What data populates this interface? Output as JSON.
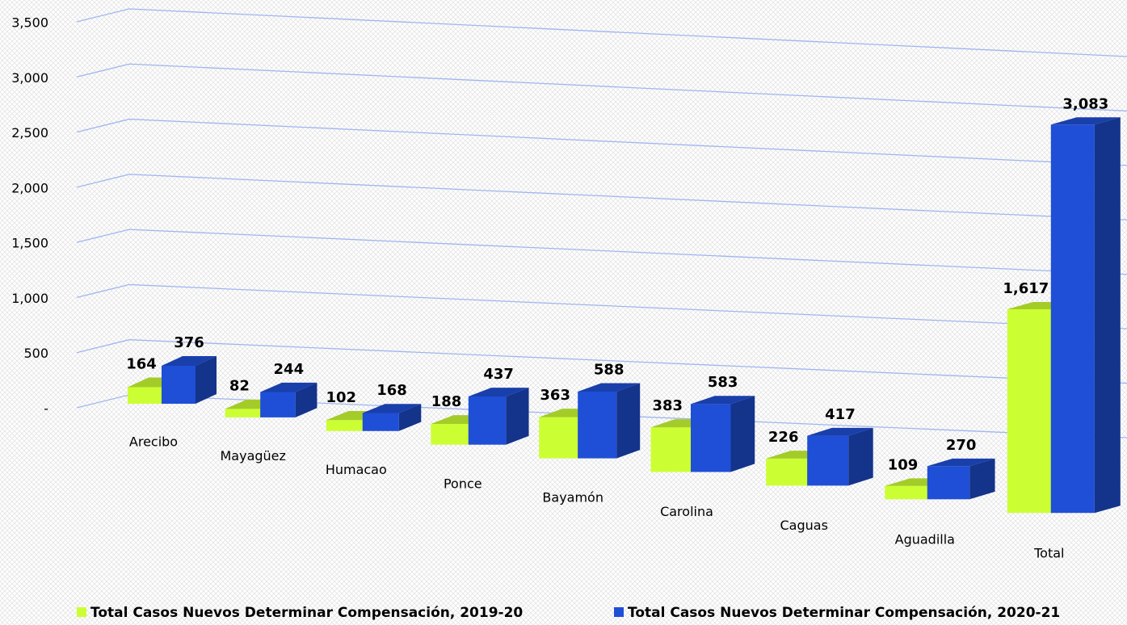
{
  "chart_data": {
    "type": "bar3d",
    "categories": [
      "Arecibo",
      "Mayagüez",
      "Humacao",
      "Ponce",
      "Bayamón",
      "Carolina",
      "Caguas",
      "Aguadilla",
      "Total"
    ],
    "series": [
      {
        "name": "Total Casos Nuevos Determinar Compensación, 2019-20",
        "color": "#ccff33",
        "values": [
          164,
          82,
          102,
          188,
          363,
          383,
          226,
          109,
          1617
        ],
        "value_labels": [
          "164",
          "82",
          "102",
          "188",
          "363",
          "383",
          "226",
          "109",
          "1,617"
        ]
      },
      {
        "name": "Total Casos Nuevos Determinar Compensación, 2020-21",
        "color": "#1f4fd6",
        "values": [
          376,
          244,
          168,
          437,
          588,
          583,
          417,
          270,
          3083
        ],
        "value_labels": [
          "376",
          "244",
          "168",
          "437",
          "588",
          "583",
          "417",
          "270",
          "3,083"
        ]
      }
    ],
    "ylim": [
      0,
      3500
    ],
    "yticks": [
      {
        "value": 0,
        "label": "-"
      },
      500,
      {
        "value": 1000,
        "label": "1,000"
      },
      {
        "value": 1500,
        "label": "1,500"
      },
      {
        "value": 2000,
        "label": "2,000"
      },
      {
        "value": 2500,
        "label": "2,500"
      },
      {
        "value": 3000,
        "label": "3,000"
      },
      {
        "value": 3500,
        "label": "3,500"
      }
    ],
    "grid": true
  }
}
